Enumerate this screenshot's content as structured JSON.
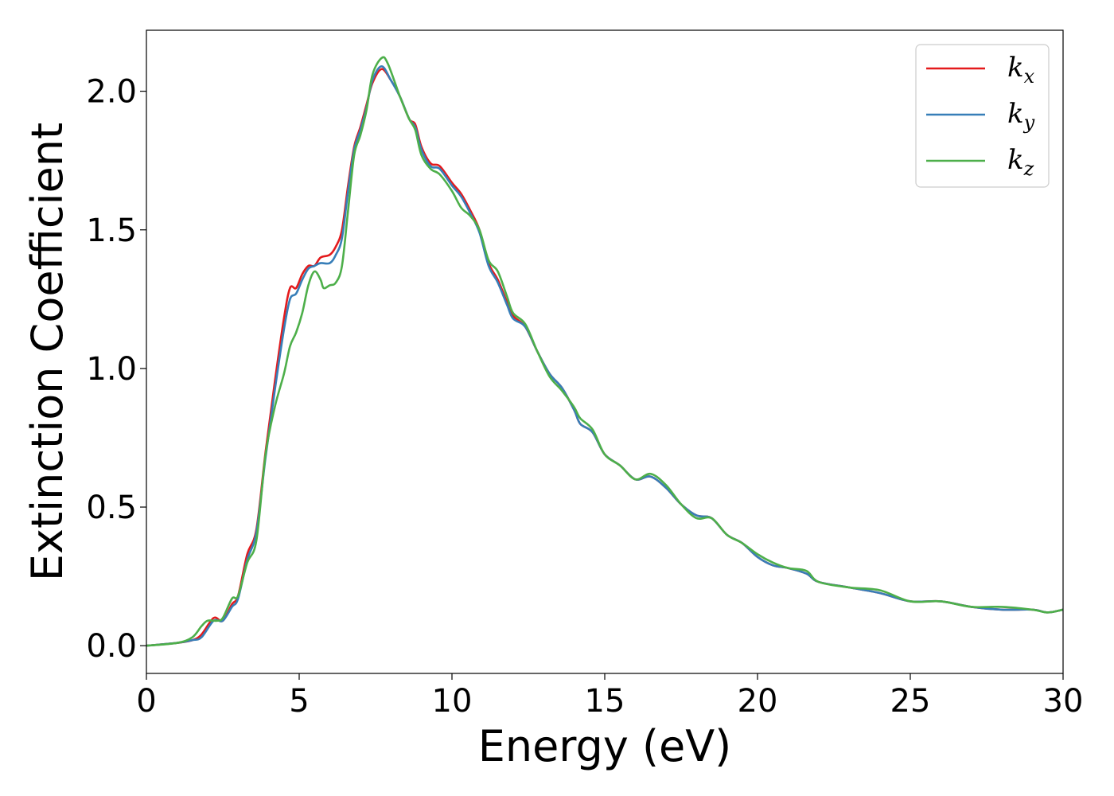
{
  "chart_data": {
    "type": "line",
    "title": "",
    "xlabel": "Energy (eV)",
    "ylabel": "Extinction Coefficient",
    "xlim": [
      0,
      30
    ],
    "ylim": [
      -0.1,
      2.22
    ],
    "xticks": [
      0,
      5,
      10,
      15,
      20,
      25,
      30
    ],
    "xtick_labels": [
      "0",
      "5",
      "10",
      "15",
      "20",
      "25",
      "30"
    ],
    "yticks": [
      0.0,
      0.5,
      1.0,
      1.5,
      2.0
    ],
    "ytick_labels": [
      "0.0",
      "0.5",
      "1.0",
      "1.5",
      "2.0"
    ],
    "grid": false,
    "legend_position": "top-right",
    "series": [
      {
        "name": "k",
        "subscript": "x",
        "color": "#e41a1c",
        "points": [
          [
            0,
            0
          ],
          [
            1,
            0.01
          ],
          [
            1.5,
            0.02
          ],
          [
            1.8,
            0.04
          ],
          [
            2.2,
            0.1
          ],
          [
            2.5,
            0.09
          ],
          [
            2.8,
            0.15
          ],
          [
            3.0,
            0.18
          ],
          [
            3.3,
            0.33
          ],
          [
            3.6,
            0.42
          ],
          [
            3.9,
            0.7
          ],
          [
            4.2,
            0.95
          ],
          [
            4.5,
            1.18
          ],
          [
            4.7,
            1.29
          ],
          [
            4.9,
            1.29
          ],
          [
            5.1,
            1.34
          ],
          [
            5.3,
            1.37
          ],
          [
            5.5,
            1.37
          ],
          [
            5.7,
            1.4
          ],
          [
            6.0,
            1.41
          ],
          [
            6.2,
            1.44
          ],
          [
            6.4,
            1.5
          ],
          [
            6.6,
            1.66
          ],
          [
            6.8,
            1.8
          ],
          [
            7.0,
            1.87
          ],
          [
            7.2,
            1.95
          ],
          [
            7.4,
            2.03
          ],
          [
            7.7,
            2.08
          ],
          [
            8.0,
            2.04
          ],
          [
            8.3,
            1.98
          ],
          [
            8.6,
            1.9
          ],
          [
            8.8,
            1.88
          ],
          [
            9.0,
            1.8
          ],
          [
            9.3,
            1.74
          ],
          [
            9.6,
            1.73
          ],
          [
            10.0,
            1.67
          ],
          [
            10.3,
            1.63
          ],
          [
            10.6,
            1.57
          ],
          [
            10.9,
            1.5
          ],
          [
            11.2,
            1.38
          ],
          [
            11.5,
            1.32
          ],
          [
            11.8,
            1.24
          ],
          [
            12.0,
            1.19
          ],
          [
            12.4,
            1.15
          ],
          [
            12.8,
            1.06
          ],
          [
            13.2,
            0.98
          ],
          [
            13.6,
            0.93
          ],
          [
            14.0,
            0.85
          ],
          [
            14.2,
            0.8
          ],
          [
            14.6,
            0.77
          ],
          [
            15.0,
            0.69
          ],
          [
            15.5,
            0.65
          ],
          [
            16.0,
            0.6
          ],
          [
            16.5,
            0.61
          ],
          [
            17.0,
            0.57
          ],
          [
            17.5,
            0.51
          ],
          [
            18.0,
            0.47
          ],
          [
            18.5,
            0.46
          ],
          [
            19.0,
            0.4
          ],
          [
            19.5,
            0.37
          ],
          [
            20.0,
            0.32
          ],
          [
            20.5,
            0.29
          ],
          [
            21.0,
            0.28
          ],
          [
            21.6,
            0.26
          ],
          [
            22.0,
            0.23
          ],
          [
            23.0,
            0.21
          ],
          [
            24.0,
            0.19
          ],
          [
            25.0,
            0.16
          ],
          [
            26.0,
            0.16
          ],
          [
            27.0,
            0.14
          ],
          [
            28.0,
            0.13
          ],
          [
            29.0,
            0.13
          ],
          [
            29.5,
            0.12
          ],
          [
            30.0,
            0.13
          ]
        ]
      },
      {
        "name": "k",
        "subscript": "y",
        "color": "#377eb8",
        "points": [
          [
            0,
            0
          ],
          [
            1,
            0.01
          ],
          [
            1.5,
            0.02
          ],
          [
            1.8,
            0.03
          ],
          [
            2.2,
            0.09
          ],
          [
            2.5,
            0.09
          ],
          [
            2.8,
            0.14
          ],
          [
            3.0,
            0.17
          ],
          [
            3.3,
            0.31
          ],
          [
            3.6,
            0.41
          ],
          [
            3.9,
            0.68
          ],
          [
            4.2,
            0.92
          ],
          [
            4.5,
            1.14
          ],
          [
            4.7,
            1.25
          ],
          [
            4.9,
            1.27
          ],
          [
            5.1,
            1.32
          ],
          [
            5.3,
            1.36
          ],
          [
            5.5,
            1.37
          ],
          [
            5.7,
            1.38
          ],
          [
            6.0,
            1.38
          ],
          [
            6.2,
            1.41
          ],
          [
            6.4,
            1.47
          ],
          [
            6.6,
            1.64
          ],
          [
            6.8,
            1.79
          ],
          [
            7.0,
            1.86
          ],
          [
            7.2,
            1.94
          ],
          [
            7.4,
            2.04
          ],
          [
            7.7,
            2.09
          ],
          [
            8.0,
            2.04
          ],
          [
            8.3,
            1.98
          ],
          [
            8.6,
            1.9
          ],
          [
            8.8,
            1.87
          ],
          [
            9.0,
            1.79
          ],
          [
            9.3,
            1.73
          ],
          [
            9.6,
            1.72
          ],
          [
            10.0,
            1.66
          ],
          [
            10.3,
            1.62
          ],
          [
            10.6,
            1.56
          ],
          [
            10.9,
            1.49
          ],
          [
            11.2,
            1.37
          ],
          [
            11.5,
            1.31
          ],
          [
            11.8,
            1.23
          ],
          [
            12.0,
            1.18
          ],
          [
            12.4,
            1.15
          ],
          [
            12.8,
            1.06
          ],
          [
            13.2,
            0.98
          ],
          [
            13.6,
            0.93
          ],
          [
            14.0,
            0.85
          ],
          [
            14.2,
            0.8
          ],
          [
            14.6,
            0.77
          ],
          [
            15.0,
            0.69
          ],
          [
            15.5,
            0.65
          ],
          [
            16.0,
            0.6
          ],
          [
            16.5,
            0.61
          ],
          [
            17.0,
            0.57
          ],
          [
            17.5,
            0.51
          ],
          [
            18.0,
            0.47
          ],
          [
            18.5,
            0.46
          ],
          [
            19.0,
            0.4
          ],
          [
            19.5,
            0.37
          ],
          [
            20.0,
            0.32
          ],
          [
            20.5,
            0.29
          ],
          [
            21.0,
            0.28
          ],
          [
            21.6,
            0.26
          ],
          [
            22.0,
            0.23
          ],
          [
            23.0,
            0.21
          ],
          [
            24.0,
            0.19
          ],
          [
            25.0,
            0.16
          ],
          [
            26.0,
            0.16
          ],
          [
            27.0,
            0.14
          ],
          [
            28.0,
            0.13
          ],
          [
            29.0,
            0.13
          ],
          [
            29.5,
            0.12
          ],
          [
            30.0,
            0.13
          ]
        ]
      },
      {
        "name": "k",
        "subscript": "z",
        "color": "#4daf4a",
        "points": [
          [
            0,
            0
          ],
          [
            1,
            0.01
          ],
          [
            1.5,
            0.03
          ],
          [
            1.8,
            0.07
          ],
          [
            2.0,
            0.09
          ],
          [
            2.3,
            0.09
          ],
          [
            2.5,
            0.1
          ],
          [
            2.8,
            0.17
          ],
          [
            3.0,
            0.18
          ],
          [
            3.3,
            0.3
          ],
          [
            3.6,
            0.38
          ],
          [
            3.9,
            0.69
          ],
          [
            4.2,
            0.86
          ],
          [
            4.5,
            0.98
          ],
          [
            4.7,
            1.08
          ],
          [
            4.9,
            1.13
          ],
          [
            5.1,
            1.2
          ],
          [
            5.3,
            1.3
          ],
          [
            5.5,
            1.35
          ],
          [
            5.7,
            1.32
          ],
          [
            5.8,
            1.29
          ],
          [
            6.0,
            1.3
          ],
          [
            6.2,
            1.31
          ],
          [
            6.4,
            1.37
          ],
          [
            6.6,
            1.57
          ],
          [
            6.8,
            1.77
          ],
          [
            7.0,
            1.84
          ],
          [
            7.2,
            1.93
          ],
          [
            7.4,
            2.06
          ],
          [
            7.7,
            2.12
          ],
          [
            7.9,
            2.1
          ],
          [
            8.3,
            1.98
          ],
          [
            8.6,
            1.9
          ],
          [
            8.8,
            1.86
          ],
          [
            9.0,
            1.77
          ],
          [
            9.3,
            1.72
          ],
          [
            9.6,
            1.7
          ],
          [
            10.0,
            1.64
          ],
          [
            10.3,
            1.58
          ],
          [
            10.6,
            1.55
          ],
          [
            10.9,
            1.5
          ],
          [
            11.2,
            1.39
          ],
          [
            11.5,
            1.35
          ],
          [
            11.8,
            1.26
          ],
          [
            12.0,
            1.2
          ],
          [
            12.4,
            1.16
          ],
          [
            12.8,
            1.06
          ],
          [
            13.2,
            0.97
          ],
          [
            13.6,
            0.92
          ],
          [
            14.0,
            0.86
          ],
          [
            14.2,
            0.82
          ],
          [
            14.6,
            0.78
          ],
          [
            15.0,
            0.69
          ],
          [
            15.5,
            0.65
          ],
          [
            16.0,
            0.6
          ],
          [
            16.5,
            0.62
          ],
          [
            17.0,
            0.58
          ],
          [
            17.5,
            0.51
          ],
          [
            18.0,
            0.46
          ],
          [
            18.5,
            0.46
          ],
          [
            19.0,
            0.4
          ],
          [
            19.5,
            0.37
          ],
          [
            20.0,
            0.33
          ],
          [
            20.5,
            0.3
          ],
          [
            21.0,
            0.28
          ],
          [
            21.6,
            0.27
          ],
          [
            22.0,
            0.23
          ],
          [
            23.0,
            0.21
          ],
          [
            24.0,
            0.2
          ],
          [
            25.0,
            0.16
          ],
          [
            26.0,
            0.16
          ],
          [
            27.0,
            0.14
          ],
          [
            28.0,
            0.14
          ],
          [
            29.0,
            0.13
          ],
          [
            29.5,
            0.12
          ],
          [
            30.0,
            0.13
          ]
        ]
      }
    ]
  }
}
